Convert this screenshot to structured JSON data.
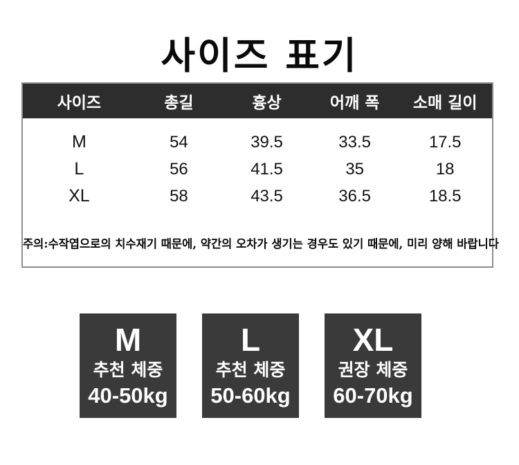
{
  "page": {
    "title": "사이즈 표기"
  },
  "size_table": {
    "columns": [
      "사이즈",
      "총길",
      "흉상",
      "어깨 폭",
      "소매 길이"
    ],
    "rows": [
      {
        "size": "M",
        "values": [
          "54",
          "39.5",
          "33.5",
          "17.5"
        ]
      },
      {
        "size": "L",
        "values": [
          "56",
          "41.5",
          "35",
          "18"
        ]
      },
      {
        "size": "XL",
        "values": [
          "58",
          "43.5",
          "36.5",
          "18.5"
        ]
      }
    ],
    "note": "주의:수작엽으로의 치수재기 때문에, 약간의 오차가 생기는 경우도 있기 때문에, 미리 양해 바랍니다"
  },
  "weight_boxes": [
    {
      "size": "M",
      "label": "추천 체중",
      "range": "40-50kg"
    },
    {
      "size": "L",
      "label": "추천 체중",
      "range": "50-60kg"
    },
    {
      "size": "XL",
      "label": "권장 체중",
      "range": "60-70kg"
    }
  ],
  "colors": {
    "header_bg": "#2d2d2d",
    "box_bg": "#3a3a3a",
    "table_border": "#8c8c8c",
    "text": "#0a0a0a",
    "text_on_dark": "#ffffff"
  }
}
